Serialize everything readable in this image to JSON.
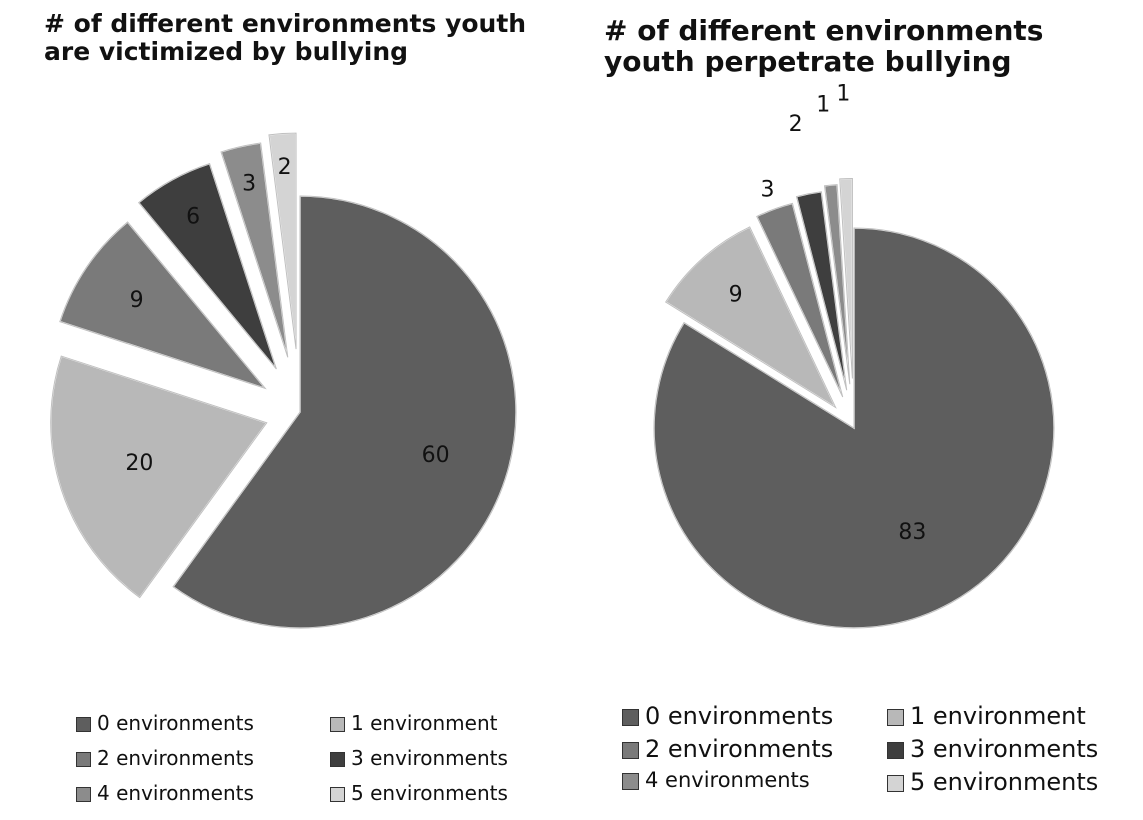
{
  "chart_data": [
    {
      "type": "pie",
      "title": "# of different environments youth are victimized by bullying",
      "categories": [
        "0 environments",
        "1 environment",
        "2 environments",
        "3 environments",
        "4 environments",
        "5 environments"
      ],
      "values": [
        60,
        20,
        9,
        6,
        3,
        2
      ],
      "data_labels": [
        "60",
        "20",
        "9",
        "6",
        "3",
        "2"
      ],
      "exploded": true,
      "legend_position": "bottom",
      "colors": [
        "#5e5e5e",
        "#b8b8b8",
        "#7a7a7a",
        "#3e3e3e",
        "#8c8c8c",
        "#d4d4d4"
      ]
    },
    {
      "type": "pie",
      "title": "# of different environments youth perpetrate bullying",
      "categories": [
        "0 environments",
        "1 environment",
        "2 environments",
        "3 environments",
        "4 environments",
        "5 environments"
      ],
      "values": [
        83,
        9,
        3,
        2,
        1,
        1
      ],
      "data_labels": [
        "83",
        "9",
        "3",
        "2",
        "1",
        "1"
      ],
      "exploded": true,
      "legend_position": "bottom",
      "colors": [
        "#5e5e5e",
        "#b8b8b8",
        "#7a7a7a",
        "#3e3e3e",
        "#8c8c8c",
        "#d4d4d4"
      ]
    }
  ]
}
